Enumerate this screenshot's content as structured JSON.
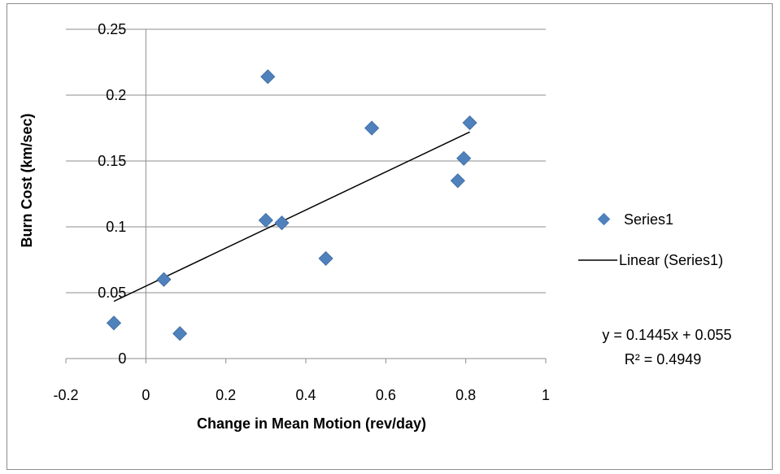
{
  "chart_data": {
    "type": "scatter",
    "title": "",
    "xlabel": "Change in Mean Motion (rev/day)",
    "ylabel": "Burn Cost (km/sec)",
    "xlim": [
      -0.2,
      1
    ],
    "ylim": [
      0,
      0.25
    ],
    "x_ticks": [
      "-0.2",
      "0",
      "0.2",
      "0.4",
      "0.6",
      "0.8",
      "1"
    ],
    "y_ticks": [
      "0",
      "0.05",
      "0.1",
      "0.15",
      "0.2",
      "0.25"
    ],
    "grid": "horizontal",
    "legend_position": "right",
    "series": [
      {
        "name": "Series1",
        "color": "#4f81bd",
        "marker": "diamond",
        "points": [
          {
            "x": -0.08,
            "y": 0.027
          },
          {
            "x": 0.045,
            "y": 0.06
          },
          {
            "x": 0.085,
            "y": 0.019
          },
          {
            "x": 0.3,
            "y": 0.105
          },
          {
            "x": 0.305,
            "y": 0.214
          },
          {
            "x": 0.34,
            "y": 0.103
          },
          {
            "x": 0.45,
            "y": 0.076
          },
          {
            "x": 0.565,
            "y": 0.175
          },
          {
            "x": 0.78,
            "y": 0.135
          },
          {
            "x": 0.795,
            "y": 0.152
          },
          {
            "x": 0.81,
            "y": 0.179
          }
        ]
      }
    ],
    "trendline": {
      "name": "Linear (Series1)",
      "color": "#000000",
      "slope": 0.1445,
      "intercept": 0.055,
      "x_range": [
        -0.08,
        0.81
      ],
      "equation": "y = 0.1445x + 0.055",
      "r_squared": "R² = 0.4949"
    }
  }
}
